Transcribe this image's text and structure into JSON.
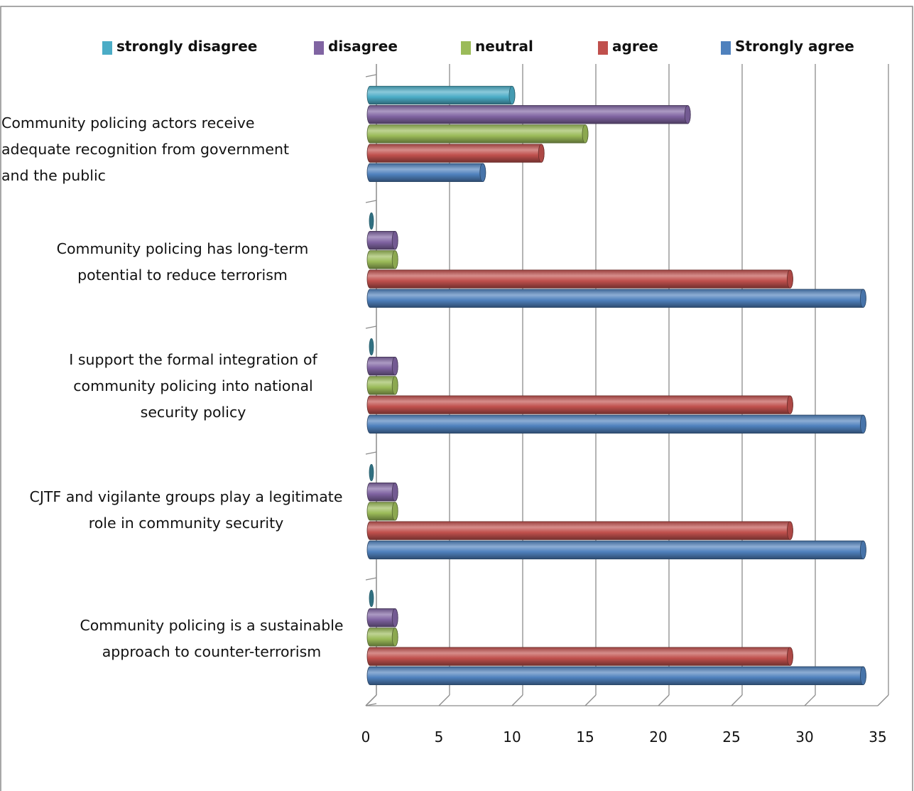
{
  "chart_data": {
    "type": "bar",
    "orientation": "horizontal",
    "style": "3d-cylinder",
    "categories": [
      "Community policing actors receive adequate recognition from government and the public",
      "Community policing has long-term potential to reduce terrorism",
      "I support the formal integration of community policing into national security policy",
      "CJTF and vigilante groups play a legitimate role in community security",
      "Community policing is a sustainable approach to counter-terrorism"
    ],
    "category_lines": [
      [
        "Community policing actors receive",
        "adequate recognition from government",
        "and the public"
      ],
      [
        "Community policing has long-term",
        "potential to reduce terrorism"
      ],
      [
        "I support the formal integration of",
        "community policing into national",
        "security policy"
      ],
      [
        "CJTF and vigilante groups play a legitimate",
        "role in community security"
      ],
      [
        "Community policing is a sustainable",
        "approach to counter-terrorism"
      ]
    ],
    "series": [
      {
        "name": "strongly disagree",
        "color": "#4bacc6",
        "values": [
          10,
          0,
          0,
          0,
          0
        ]
      },
      {
        "name": "disagree",
        "color": "#8064a2",
        "values": [
          22,
          2,
          2,
          2,
          2
        ]
      },
      {
        "name": "neutral",
        "color": "#9bbb59",
        "values": [
          15,
          2,
          2,
          2,
          2
        ]
      },
      {
        "name": "agree",
        "color": "#c0504d",
        "values": [
          12,
          29,
          29,
          29,
          29
        ]
      },
      {
        "name": "Strongly agree",
        "color": "#4f81bd",
        "values": [
          8,
          34,
          34,
          34,
          34
        ]
      }
    ],
    "xlim": [
      0,
      35
    ],
    "xticks": [
      "0",
      "5",
      "10",
      "15",
      "20",
      "25",
      "30",
      "35"
    ],
    "grid": true,
    "legend_position": "top"
  }
}
